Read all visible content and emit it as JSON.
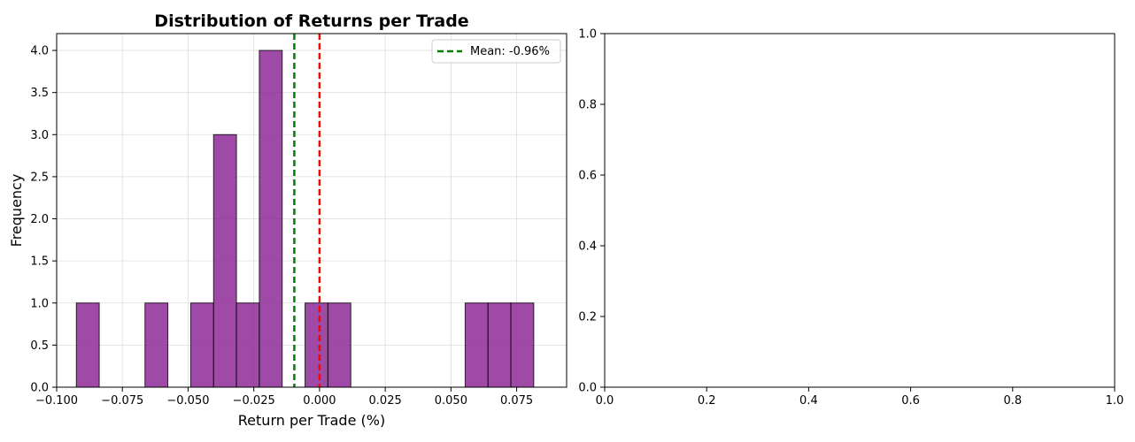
{
  "colors": {
    "bar_fill": "#8e2a96",
    "bar_edge": "#000000",
    "mean_line": "#008000",
    "zero_line": "#ff0000",
    "grid": "#dddddd"
  },
  "chart_data": [
    {
      "type": "bar",
      "title": "Distribution of Returns per Trade",
      "xlabel": "Return per Trade (%)",
      "ylabel": "Frequency",
      "xlim": [
        -0.1,
        0.094
      ],
      "ylim": [
        0,
        4.2
      ],
      "grid": true,
      "legend_position": "top-right",
      "x_ticks": [
        -0.1,
        -0.075,
        -0.05,
        -0.025,
        0.0,
        0.025,
        0.05,
        0.075
      ],
      "x_tick_labels": [
        "−0.100",
        "−0.075",
        "−0.050",
        "−0.025",
        "0.000",
        "0.025",
        "0.050",
        "0.075"
      ],
      "y_ticks": [
        0,
        0.5,
        1,
        1.5,
        2,
        2.5,
        3,
        3.5,
        4
      ],
      "y_tick_labels": [
        "0.0",
        "0.5",
        "1.0",
        "1.5",
        "2.0",
        "2.5",
        "3.0",
        "3.5",
        "4.0"
      ],
      "bins": [
        {
          "x0": -0.0925,
          "x1": -0.0838,
          "count": 1
        },
        {
          "x0": -0.0838,
          "x1": -0.0751,
          "count": 0
        },
        {
          "x0": -0.0751,
          "x1": -0.0664,
          "count": 0
        },
        {
          "x0": -0.0664,
          "x1": -0.0577,
          "count": 1
        },
        {
          "x0": -0.0577,
          "x1": -0.049,
          "count": 0
        },
        {
          "x0": -0.049,
          "x1": -0.0403,
          "count": 1
        },
        {
          "x0": -0.0403,
          "x1": -0.0316,
          "count": 3
        },
        {
          "x0": -0.0316,
          "x1": -0.0229,
          "count": 1
        },
        {
          "x0": -0.0229,
          "x1": -0.0142,
          "count": 4
        },
        {
          "x0": -0.0142,
          "x1": -0.0055,
          "count": 0
        },
        {
          "x0": -0.0055,
          "x1": 0.0032,
          "count": 1
        },
        {
          "x0": 0.0032,
          "x1": 0.0119,
          "count": 1
        },
        {
          "x0": 0.0119,
          "x1": 0.0206,
          "count": 0
        },
        {
          "x0": 0.0206,
          "x1": 0.0293,
          "count": 0
        },
        {
          "x0": 0.0293,
          "x1": 0.038,
          "count": 0
        },
        {
          "x0": 0.038,
          "x1": 0.0467,
          "count": 0
        },
        {
          "x0": 0.0467,
          "x1": 0.0554,
          "count": 0
        },
        {
          "x0": 0.0554,
          "x1": 0.0641,
          "count": 1
        },
        {
          "x0": 0.0641,
          "x1": 0.0728,
          "count": 1
        },
        {
          "x0": 0.0728,
          "x1": 0.0815,
          "count": 1
        }
      ],
      "vlines": [
        {
          "x": -0.0096,
          "style": "dashed",
          "color": "#008000",
          "label": "Mean: -0.96%"
        },
        {
          "x": 0.0,
          "style": "dashed",
          "color": "#ff0000",
          "label": ""
        }
      ],
      "legend": [
        "Mean: -0.96%"
      ]
    },
    {
      "type": "empty",
      "title": "",
      "xlabel": "",
      "ylabel": "",
      "xlim": [
        0,
        1
      ],
      "ylim": [
        0,
        1
      ],
      "grid": false,
      "x_ticks": [
        0,
        0.2,
        0.4,
        0.6,
        0.8,
        1.0
      ],
      "x_tick_labels": [
        "0.0",
        "0.2",
        "0.4",
        "0.6",
        "0.8",
        "1.0"
      ],
      "y_ticks": [
        0,
        0.2,
        0.4,
        0.6,
        0.8,
        1.0
      ],
      "y_tick_labels": [
        "0.0",
        "0.2",
        "0.4",
        "0.6",
        "0.8",
        "1.0"
      ]
    }
  ]
}
